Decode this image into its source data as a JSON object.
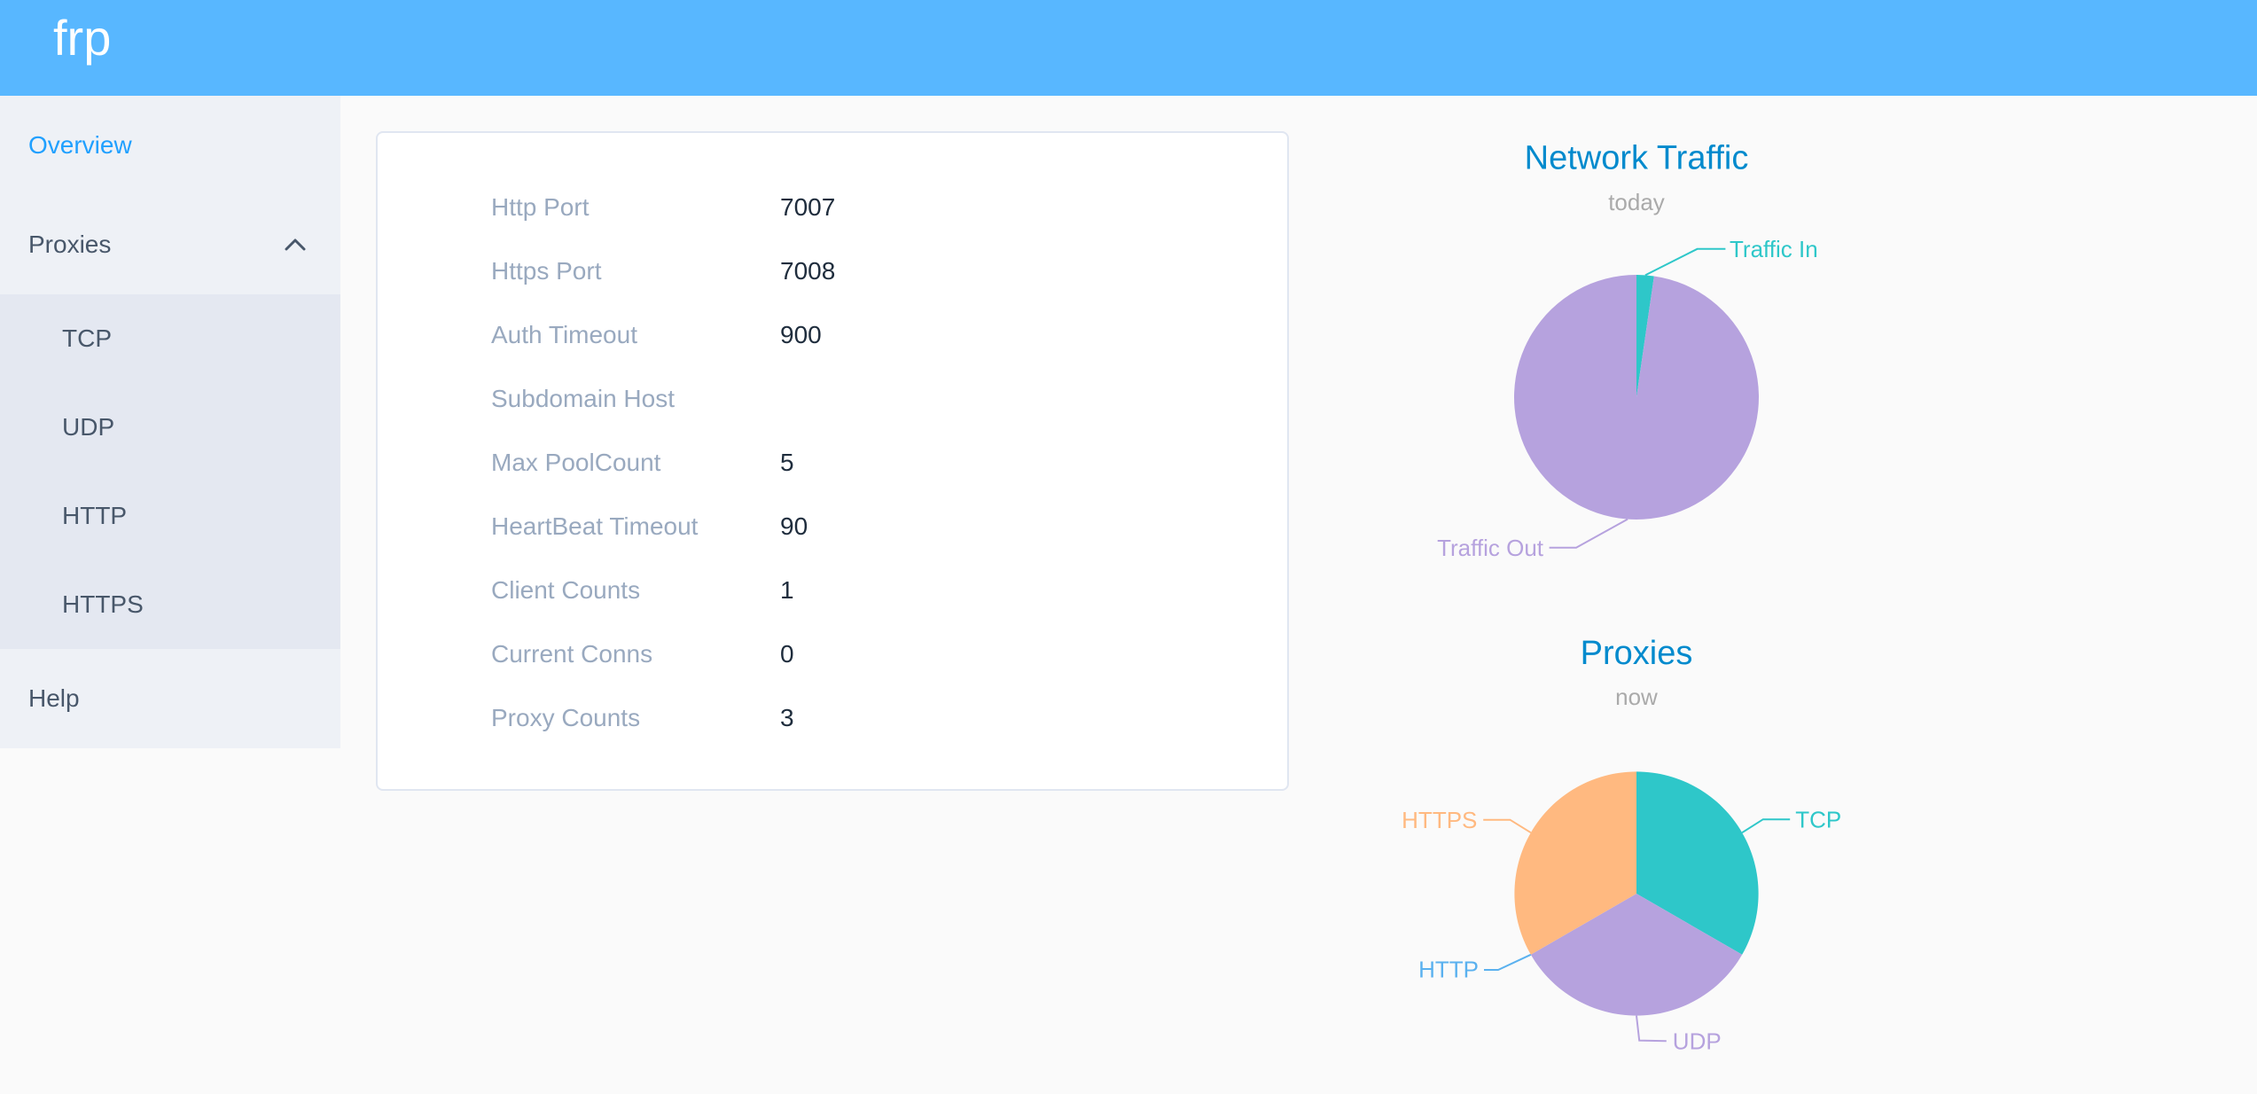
{
  "header": {
    "logo": "frp",
    "brand_color": "#58b7ff"
  },
  "sidebar": {
    "items": [
      {
        "label": "Overview",
        "active": true
      },
      {
        "label": "Proxies",
        "expanded": true,
        "children": [
          {
            "label": "TCP"
          },
          {
            "label": "UDP"
          },
          {
            "label": "HTTP"
          },
          {
            "label": "HTTPS"
          }
        ]
      },
      {
        "label": "Help"
      }
    ]
  },
  "server_info": {
    "rows": [
      {
        "label": "Http Port",
        "value": "7007"
      },
      {
        "label": "Https Port",
        "value": "7008"
      },
      {
        "label": "Auth Timeout",
        "value": "900"
      },
      {
        "label": "Subdomain Host",
        "value": ""
      },
      {
        "label": "Max PoolCount",
        "value": "5"
      },
      {
        "label": "HeartBeat Timeout",
        "value": "90"
      },
      {
        "label": "Client Counts",
        "value": "1"
      },
      {
        "label": "Current Conns",
        "value": "0"
      },
      {
        "label": "Proxy Counts",
        "value": "3"
      }
    ]
  },
  "chart_data": [
    {
      "id": "traffic",
      "type": "pie",
      "title": "Network Traffic",
      "subtitle": "today",
      "legend_position": "none",
      "title_color": "#008acd",
      "subtitle_color": "#aaaaaa",
      "series": [
        {
          "name": "Traffic In",
          "value": 2.3,
          "color": "#2ec7c9"
        },
        {
          "name": "Traffic Out",
          "value": 97.7,
          "color": "#b6a2de"
        }
      ]
    },
    {
      "id": "proxies",
      "type": "pie",
      "title": "Proxies",
      "subtitle": "now",
      "legend_position": "none",
      "title_color": "#008acd",
      "subtitle_color": "#aaaaaa",
      "series": [
        {
          "name": "TCP",
          "value": 1,
          "color": "#2ec7c9"
        },
        {
          "name": "UDP",
          "value": 1,
          "color": "#b6a2de"
        },
        {
          "name": "HTTP",
          "value": 0,
          "color": "#5ab1ef"
        },
        {
          "name": "HTTPS",
          "value": 1,
          "color": "#ffb980"
        }
      ]
    }
  ]
}
